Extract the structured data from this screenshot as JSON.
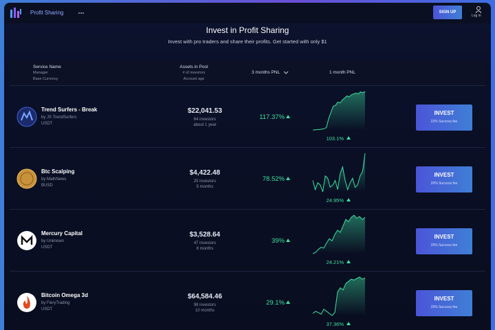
{
  "header": {
    "app_name": "Profit Sharing",
    "sign_up": "SIGN UP",
    "log_in": "Log in"
  },
  "page": {
    "title": "Invest in Profit Sharing",
    "subtitle": "Invest with pro traders and share their profits. Get started with only $1"
  },
  "table": {
    "columns": [
      {
        "lines": [
          "Service Name",
          "Manager",
          "Base Currency"
        ]
      },
      {
        "lines": [
          "Assets in Pool",
          "# of investors",
          "Account age"
        ]
      },
      {
        "lines": [
          "3 months PNL"
        ]
      },
      {
        "lines": [
          "1 month PNL"
        ]
      }
    ],
    "rows": [
      {
        "name": "Trend Surfers - Break",
        "manager": "by JS TrendSurfers",
        "currency": "USDT",
        "assets": "$22,041.53",
        "investors": "64 investors",
        "age": "about 1 year",
        "pnl_3m": "117.37%",
        "pnl_1m": "103.1%",
        "button": "INVEST",
        "fee": "22% Success fee",
        "chart": [
          2,
          2,
          3,
          3,
          4,
          5,
          8,
          30,
          45,
          60,
          62,
          70,
          68,
          75,
          80,
          85,
          83,
          88,
          90,
          92,
          90,
          95,
          93,
          96
        ]
      },
      {
        "name": "Btc Scalping",
        "manager": "by MathNews",
        "currency": "BUSD",
        "assets": "$4,422.48",
        "investors": "25 investors",
        "age": "5 months",
        "pnl_3m": "78.52%",
        "pnl_1m": "24.95%",
        "button": "INVEST",
        "fee": "20% Success fee",
        "chart": [
          40,
          20,
          35,
          30,
          15,
          50,
          45,
          25,
          30,
          40,
          20,
          55,
          70,
          40,
          20,
          35,
          45,
          25,
          30,
          50,
          60,
          100
        ]
      },
      {
        "name": "Mercury Capital",
        "manager": "by Unknown",
        "currency": "USDT",
        "assets": "$3,528.64",
        "investors": "47 investors",
        "age": "8 months",
        "pnl_3m": "39%",
        "pnl_1m": "24.21%",
        "button": "INVEST",
        "fee": "25% Success fee",
        "chart": [
          5,
          8,
          15,
          20,
          18,
          30,
          40,
          35,
          50,
          60,
          55,
          70,
          85,
          80,
          90,
          95,
          88,
          92,
          85,
          90
        ]
      },
      {
        "name": "Bitcoin Omega 3d",
        "manager": "by FieryTrading",
        "currency": "USDT",
        "assets": "$64,584.46",
        "investors": "98 investors",
        "age": "10 months",
        "pnl_3m": "29.1%",
        "pnl_1m": "37.36%",
        "button": "INVEST",
        "fee": "25% Success fee",
        "chart": [
          10,
          15,
          12,
          8,
          20,
          15,
          10,
          5,
          12,
          60,
          70,
          65,
          80,
          85,
          90,
          88,
          92,
          95,
          90,
          93
        ]
      }
    ]
  }
}
